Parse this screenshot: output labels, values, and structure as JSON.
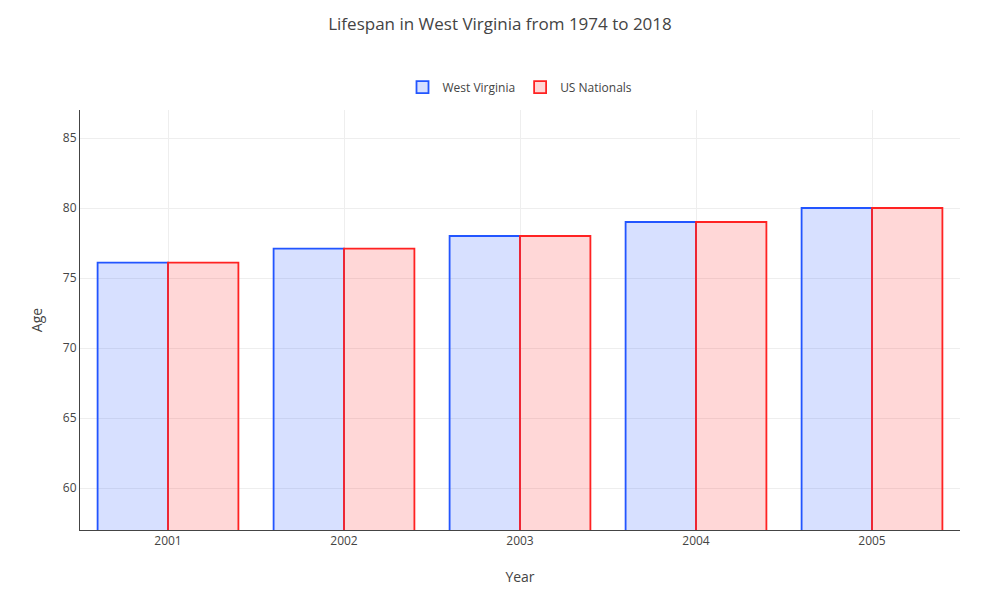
{
  "chart_data": {
    "type": "bar",
    "title": "Lifespan in West Virginia from 1974 to 2018",
    "xlabel": "Year",
    "ylabel": "Age",
    "categories": [
      "2001",
      "2002",
      "2003",
      "2004",
      "2005"
    ],
    "series": [
      {
        "name": "West Virginia",
        "color": "#2255ff",
        "values": [
          76.1,
          77.1,
          78.0,
          79.0,
          80.0
        ]
      },
      {
        "name": "US Nationals",
        "color": "#ff2222",
        "values": [
          76.1,
          77.1,
          78.0,
          79.0,
          80.0
        ]
      }
    ],
    "ylim": [
      57,
      87
    ],
    "yticks": [
      60,
      65,
      70,
      75,
      80,
      85
    ],
    "grid": true,
    "legend": "top"
  }
}
